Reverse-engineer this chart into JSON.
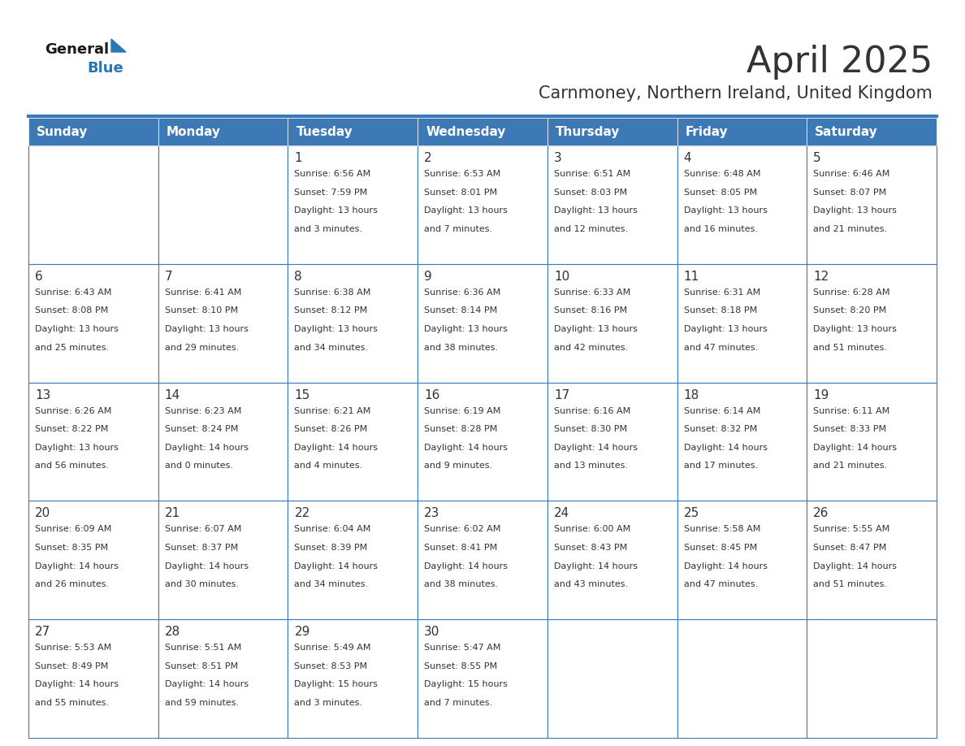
{
  "title": "April 2025",
  "subtitle": "Carnmoney, Northern Ireland, United Kingdom",
  "header_color": "#3d7ab5",
  "header_text_color": "#ffffff",
  "day_names": [
    "Sunday",
    "Monday",
    "Tuesday",
    "Wednesday",
    "Thursday",
    "Friday",
    "Saturday"
  ],
  "weeks": [
    [
      {
        "day": "",
        "sunrise": "",
        "sunset": "",
        "daylight": ""
      },
      {
        "day": "",
        "sunrise": "",
        "sunset": "",
        "daylight": ""
      },
      {
        "day": "1",
        "sunrise": "6:56 AM",
        "sunset": "7:59 PM",
        "daylight": "13 hours and 3 minutes."
      },
      {
        "day": "2",
        "sunrise": "6:53 AM",
        "sunset": "8:01 PM",
        "daylight": "13 hours and 7 minutes."
      },
      {
        "day": "3",
        "sunrise": "6:51 AM",
        "sunset": "8:03 PM",
        "daylight": "13 hours and 12 minutes."
      },
      {
        "day": "4",
        "sunrise": "6:48 AM",
        "sunset": "8:05 PM",
        "daylight": "13 hours and 16 minutes."
      },
      {
        "day": "5",
        "sunrise": "6:46 AM",
        "sunset": "8:07 PM",
        "daylight": "13 hours and 21 minutes."
      }
    ],
    [
      {
        "day": "6",
        "sunrise": "6:43 AM",
        "sunset": "8:08 PM",
        "daylight": "13 hours and 25 minutes."
      },
      {
        "day": "7",
        "sunrise": "6:41 AM",
        "sunset": "8:10 PM",
        "daylight": "13 hours and 29 minutes."
      },
      {
        "day": "8",
        "sunrise": "6:38 AM",
        "sunset": "8:12 PM",
        "daylight": "13 hours and 34 minutes."
      },
      {
        "day": "9",
        "sunrise": "6:36 AM",
        "sunset": "8:14 PM",
        "daylight": "13 hours and 38 minutes."
      },
      {
        "day": "10",
        "sunrise": "6:33 AM",
        "sunset": "8:16 PM",
        "daylight": "13 hours and 42 minutes."
      },
      {
        "day": "11",
        "sunrise": "6:31 AM",
        "sunset": "8:18 PM",
        "daylight": "13 hours and 47 minutes."
      },
      {
        "day": "12",
        "sunrise": "6:28 AM",
        "sunset": "8:20 PM",
        "daylight": "13 hours and 51 minutes."
      }
    ],
    [
      {
        "day": "13",
        "sunrise": "6:26 AM",
        "sunset": "8:22 PM",
        "daylight": "13 hours and 56 minutes."
      },
      {
        "day": "14",
        "sunrise": "6:23 AM",
        "sunset": "8:24 PM",
        "daylight": "14 hours and 0 minutes."
      },
      {
        "day": "15",
        "sunrise": "6:21 AM",
        "sunset": "8:26 PM",
        "daylight": "14 hours and 4 minutes."
      },
      {
        "day": "16",
        "sunrise": "6:19 AM",
        "sunset": "8:28 PM",
        "daylight": "14 hours and 9 minutes."
      },
      {
        "day": "17",
        "sunrise": "6:16 AM",
        "sunset": "8:30 PM",
        "daylight": "14 hours and 13 minutes."
      },
      {
        "day": "18",
        "sunrise": "6:14 AM",
        "sunset": "8:32 PM",
        "daylight": "14 hours and 17 minutes."
      },
      {
        "day": "19",
        "sunrise": "6:11 AM",
        "sunset": "8:33 PM",
        "daylight": "14 hours and 21 minutes."
      }
    ],
    [
      {
        "day": "20",
        "sunrise": "6:09 AM",
        "sunset": "8:35 PM",
        "daylight": "14 hours and 26 minutes."
      },
      {
        "day": "21",
        "sunrise": "6:07 AM",
        "sunset": "8:37 PM",
        "daylight": "14 hours and 30 minutes."
      },
      {
        "day": "22",
        "sunrise": "6:04 AM",
        "sunset": "8:39 PM",
        "daylight": "14 hours and 34 minutes."
      },
      {
        "day": "23",
        "sunrise": "6:02 AM",
        "sunset": "8:41 PM",
        "daylight": "14 hours and 38 minutes."
      },
      {
        "day": "24",
        "sunrise": "6:00 AM",
        "sunset": "8:43 PM",
        "daylight": "14 hours and 43 minutes."
      },
      {
        "day": "25",
        "sunrise": "5:58 AM",
        "sunset": "8:45 PM",
        "daylight": "14 hours and 47 minutes."
      },
      {
        "day": "26",
        "sunrise": "5:55 AM",
        "sunset": "8:47 PM",
        "daylight": "14 hours and 51 minutes."
      }
    ],
    [
      {
        "day": "27",
        "sunrise": "5:53 AM",
        "sunset": "8:49 PM",
        "daylight": "14 hours and 55 minutes."
      },
      {
        "day": "28",
        "sunrise": "5:51 AM",
        "sunset": "8:51 PM",
        "daylight": "14 hours and 59 minutes."
      },
      {
        "day": "29",
        "sunrise": "5:49 AM",
        "sunset": "8:53 PM",
        "daylight": "15 hours and 3 minutes."
      },
      {
        "day": "30",
        "sunrise": "5:47 AM",
        "sunset": "8:55 PM",
        "daylight": "15 hours and 7 minutes."
      },
      {
        "day": "",
        "sunrise": "",
        "sunset": "",
        "daylight": ""
      },
      {
        "day": "",
        "sunrise": "",
        "sunset": "",
        "daylight": ""
      },
      {
        "day": "",
        "sunrise": "",
        "sunset": "",
        "daylight": ""
      }
    ]
  ],
  "background_color": "#ffffff",
  "border_color": "#3d7ab5",
  "text_color": "#333333",
  "title_fontsize": 32,
  "subtitle_fontsize": 15,
  "header_fontsize": 11,
  "day_num_fontsize": 11,
  "cell_fontsize": 8,
  "logo_general_color": "#1a1a1a",
  "logo_blue_color": "#2878b5",
  "triangle_color": "#2878b5"
}
